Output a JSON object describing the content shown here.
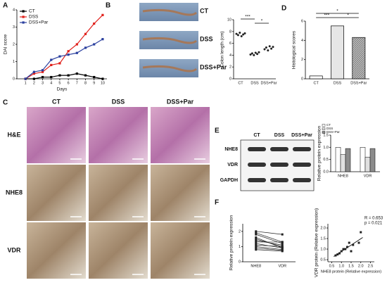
{
  "chart_data": [
    {
      "type": "line",
      "panel": "A",
      "xlabel": "Days",
      "ylabel": "DAI score",
      "x": [
        1,
        2,
        3,
        4,
        5,
        6,
        7,
        8,
        9,
        10
      ],
      "xlim": [
        0,
        10.5
      ],
      "xticks": [
        1,
        2,
        3,
        4,
        5,
        6,
        7,
        8,
        9,
        10
      ],
      "ylim": [
        0,
        4
      ],
      "yticks": [
        0,
        1,
        2,
        3,
        4
      ],
      "legend": "top-left",
      "series": [
        {
          "name": "CT",
          "color": "#000000",
          "values": [
            0,
            0,
            0.1,
            0.1,
            0.2,
            0.2,
            0.3,
            0.2,
            0.1,
            0
          ]
        },
        {
          "name": "DSS",
          "color": "#e0201b",
          "values": [
            0,
            0.3,
            0.4,
            0.8,
            0.9,
            1.6,
            2.0,
            2.6,
            3.2,
            3.7
          ]
        },
        {
          "name": "DSS+Par",
          "color": "#2a3f9e",
          "values": [
            0,
            0.4,
            0.5,
            1.1,
            1.3,
            1.4,
            1.5,
            1.8,
            2.0,
            2.3
          ]
        }
      ]
    },
    {
      "type": "dotplot",
      "panel": "B",
      "ylabel": "Colon length (cm)",
      "photo_labels": [
        "CT",
        "DSS",
        "DSS+Par"
      ],
      "categories": [
        "CT",
        "DSS",
        "DSS+Par"
      ],
      "ylim": [
        0,
        10
      ],
      "yticks": [
        0,
        2,
        4,
        6,
        8,
        10
      ],
      "color": "#222222",
      "annotations": [
        "***",
        "*"
      ],
      "points": [
        [
          7.6,
          7.4,
          7.8,
          7.2,
          7.5,
          7.7
        ],
        [
          4.1,
          4.3,
          4.0,
          4.4,
          4.2,
          4.5
        ],
        [
          5.0,
          5.3,
          4.8,
          5.5,
          5.1,
          5.4
        ]
      ]
    },
    {
      "type": "bar",
      "panel": "D",
      "ylabel": "Histological scores",
      "categories": [
        "CT",
        "DSS",
        "DSS+Par"
      ],
      "values": [
        0.3,
        5.5,
        4.3
      ],
      "colors": [
        "#ffffff",
        "#e6e6e6",
        "#9a9a9a"
      ],
      "ylim": [
        0,
        6
      ],
      "yticks": [
        0,
        2,
        4,
        6
      ],
      "annotations": [
        "***",
        "*",
        "*"
      ]
    },
    {
      "type": "image_grid",
      "panel": "C",
      "columns": [
        "CT",
        "DSS",
        "DSS+Par"
      ],
      "rows": [
        "H&E",
        "NHE8",
        "VDR"
      ]
    },
    {
      "type": "blot_bar",
      "panel": "E",
      "lanes": [
        "CT",
        "DSS",
        "DSS+Par"
      ],
      "bands": [
        "NHE8",
        "VDR",
        "GAPDH"
      ],
      "ylabel": "Relative protein expression",
      "categories": [
        "NHE8",
        "VDR"
      ],
      "ylim": [
        0,
        1.5
      ],
      "yticks": [
        {
          "value": 0,
          "label": "0.0"
        },
        {
          "value": 0.5,
          "label": "0.5"
        },
        {
          "value": 1,
          "label": "1.0"
        },
        {
          "value": 1.5,
          "label": "1.5"
        }
      ],
      "series": [
        {
          "name": "CT",
          "color": "#ffffff",
          "values": [
            1.0,
            1.0
          ]
        },
        {
          "name": "DSS",
          "color": "#e0e0e0",
          "values": [
            0.7,
            0.6
          ]
        },
        {
          "name": "DSS+Par",
          "color": "#8c8c8c",
          "values": [
            0.95,
            0.95
          ]
        }
      ]
    },
    {
      "type": "paired",
      "panel": "F",
      "ylabel": "Relative protein expression",
      "categories": [
        "NHE8",
        "VDR"
      ],
      "ylim": [
        0,
        2.5
      ],
      "yticks": [
        0,
        1,
        2
      ],
      "color": "#222222",
      "values": [
        [
          2.0,
          1.9,
          1.8,
          1.6,
          1.5,
          1.4,
          1.3,
          1.2,
          1.1,
          1.0,
          0.9,
          0.8
        ],
        [
          1.8,
          1.3,
          1.2,
          0.9,
          1.0,
          1.1,
          1.3,
          0.9,
          1.0,
          0.8,
          0.75,
          0.7
        ]
      ]
    },
    {
      "type": "scatter",
      "xlabel": "NHE8 protein (Relative expression)",
      "ylabel": "VDR protein (Relative expression)",
      "annotations": [
        "R = 0.653",
        "p = 0.021"
      ],
      "color": "#222222",
      "xlim": [
        0.3,
        2.7
      ],
      "xticks": [
        {
          "value": 0.5,
          "label": "0.5"
        },
        {
          "value": 1,
          "label": "1.0"
        },
        {
          "value": 1.5,
          "label": "1.5"
        },
        {
          "value": 2,
          "label": "2.0"
        },
        {
          "value": 2.5,
          "label": "2.5"
        }
      ],
      "ylim": [
        0.4,
        2.2
      ],
      "yticks": [
        {
          "value": 0.5,
          "label": "0.5"
        },
        {
          "value": 1,
          "label": "1.0"
        },
        {
          "value": 1.5,
          "label": "1.5"
        },
        {
          "value": 2,
          "label": "2.0"
        }
      ],
      "x": [
        0.7,
        0.8,
        0.9,
        1.0,
        1.1,
        1.2,
        1.3,
        1.4,
        1.5,
        1.6,
        1.9,
        2.0
      ],
      "values": [
        0.7,
        0.75,
        0.8,
        0.9,
        1.0,
        1.0,
        1.1,
        1.3,
        0.9,
        1.2,
        1.3,
        1.8
      ],
      "trend_line": {
        "x": [
          0.6,
          2.1
        ],
        "y": [
          0.65,
          1.55
        ]
      }
    }
  ]
}
